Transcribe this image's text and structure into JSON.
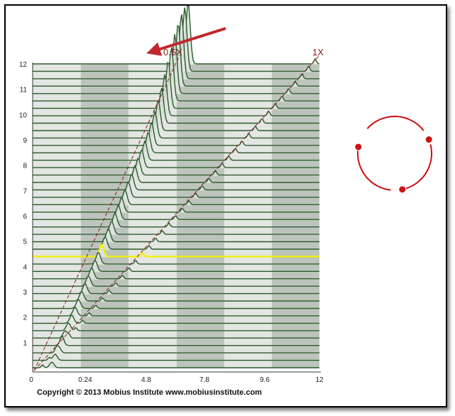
{
  "chart_data": {
    "type": "waterfall",
    "title": "",
    "xlabel": "",
    "ylabel": "",
    "x_ticks": [
      "0",
      "0.24",
      "4.8",
      "7.8",
      "9.6",
      "12"
    ],
    "y_ticks": [
      "1",
      "2",
      "3",
      "4",
      "5",
      "6",
      "7",
      "8",
      "9",
      "10",
      "11",
      "12"
    ],
    "xlim": [
      0,
      12
    ],
    "ylim": [
      0,
      12
    ],
    "trace_count": 42,
    "order_lines": [
      {
        "label": "0.5X",
        "ratio": 0.5
      },
      {
        "label": "1X",
        "ratio": 1.0
      }
    ],
    "highlighted_trace": {
      "index": 15,
      "color": "#f2f000"
    },
    "colors": {
      "trace": "#2d5a2d",
      "order_line": "#8b1a1a",
      "arrow": "#c0282d",
      "highlight": "#f2f000",
      "orbit": "#cc1111"
    }
  },
  "footer": {
    "copyright": "Copyright © 2013 Mobius Institute www.mobiusinstitute.com"
  }
}
